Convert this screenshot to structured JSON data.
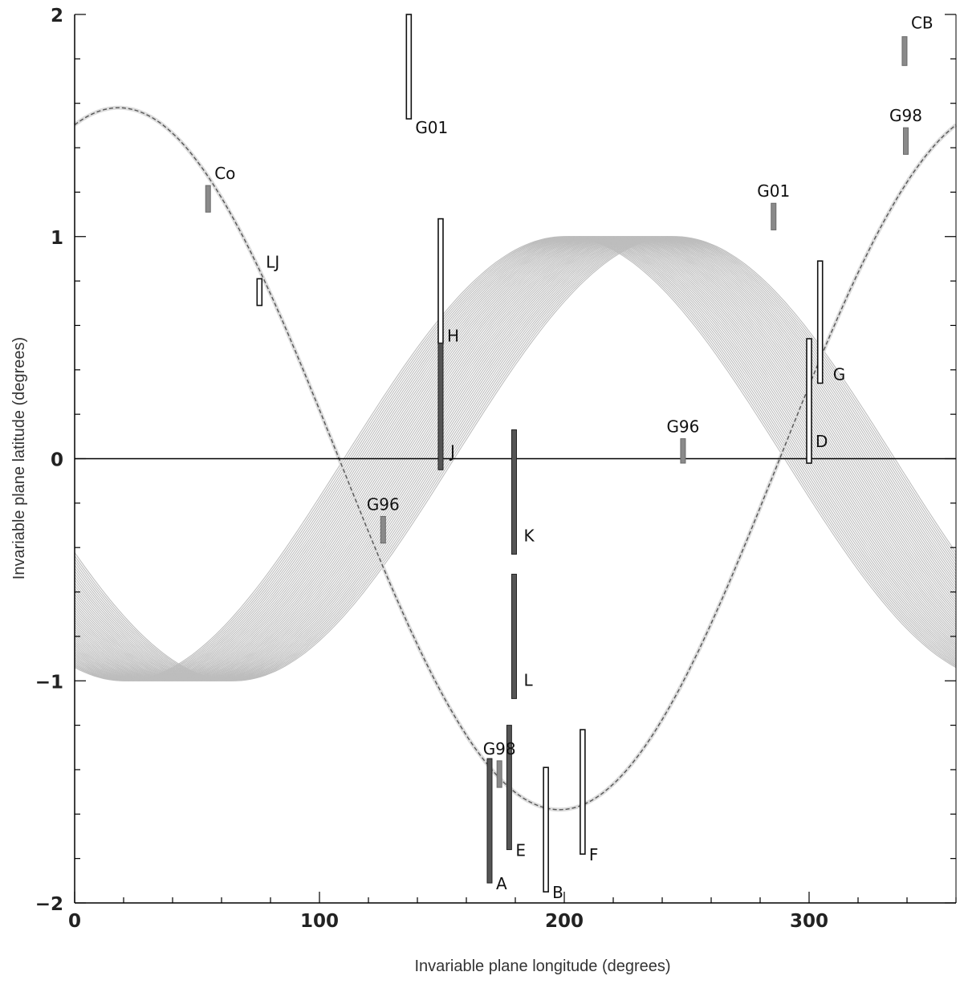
{
  "chart_data": {
    "type": "scatter",
    "title": "",
    "xlabel": "Invariable plane longitude (degrees)",
    "ylabel": "Invariable plane latitude (degrees)",
    "xlim": [
      0,
      360
    ],
    "ylim": [
      -2,
      2
    ],
    "x_ticks": [
      {
        "v": 0,
        "label": "0"
      },
      {
        "v": 100,
        "label": "100"
      },
      {
        "v": 200,
        "label": "200"
      },
      {
        "v": 300,
        "label": "300"
      }
    ],
    "y_ticks": [
      {
        "v": -2,
        "label": "−2"
      },
      {
        "v": -1,
        "label": "−1"
      },
      {
        "v": 0,
        "label": "0"
      },
      {
        "v": 1,
        "label": "1"
      },
      {
        "v": 2,
        "label": "2"
      }
    ],
    "grid": false,
    "curve": {
      "amplitude": 1.58,
      "peak_longitude": 18
    },
    "band": {
      "half_width": 1.0,
      "phase_range": [
        110,
        155
      ]
    },
    "zero_line": true,
    "color_band": "#bdbdbd",
    "color_curve": "#555555",
    "markers": [
      {
        "label": "G01",
        "x": 136.5,
        "y_low": 1.53,
        "y_high": 2.0,
        "style": "hollow"
      },
      {
        "label": "CB",
        "x": 339,
        "y_low": 1.77,
        "y_high": 1.9,
        "style": "gray"
      },
      {
        "label": "G98",
        "x": 339.5,
        "y_low": 1.37,
        "y_high": 1.49,
        "style": "gray"
      },
      {
        "label": "Co",
        "x": 54.5,
        "y_low": 1.11,
        "y_high": 1.23,
        "style": "gray"
      },
      {
        "label": "G01",
        "x": 285.5,
        "y_low": 1.03,
        "y_high": 1.15,
        "style": "gray"
      },
      {
        "label": "LJ",
        "x": 75.5,
        "y_low": 0.69,
        "y_high": 0.81,
        "style": "hollow"
      },
      {
        "label": "H",
        "x": 149.5,
        "y_low": 0.52,
        "y_high": 1.08,
        "style": "hollow"
      },
      {
        "label": "J",
        "x": 149.5,
        "y_low": -0.05,
        "y_high": 0.52,
        "style": "dark"
      },
      {
        "label": "G",
        "x": 304.5,
        "y_low": 0.34,
        "y_high": 0.89,
        "style": "hollow"
      },
      {
        "label": "D",
        "x": 300,
        "y_low": -0.02,
        "y_high": 0.54,
        "style": "hollow"
      },
      {
        "label": "G96",
        "x": 248.5,
        "y_low": -0.02,
        "y_high": 0.09,
        "style": "gray"
      },
      {
        "label": "K",
        "x": 179.5,
        "y_low": -0.43,
        "y_high": 0.13,
        "style": "dark"
      },
      {
        "label": "G96",
        "x": 126,
        "y_low": -0.38,
        "y_high": -0.26,
        "style": "gray"
      },
      {
        "label": "L",
        "x": 179.5,
        "y_low": -1.08,
        "y_high": -0.52,
        "style": "dark"
      },
      {
        "label": "G98",
        "x": 173.5,
        "y_low": -1.48,
        "y_high": -1.36,
        "style": "gray"
      },
      {
        "label": "A",
        "x": 169.5,
        "y_low": -1.91,
        "y_high": -1.35,
        "style": "dark"
      },
      {
        "label": "E",
        "x": 177.5,
        "y_low": -1.76,
        "y_high": -1.2,
        "style": "dark"
      },
      {
        "label": "B",
        "x": 192.5,
        "y_low": -1.95,
        "y_high": -1.39,
        "style": "hollow"
      },
      {
        "label": "F",
        "x": 207.5,
        "y_low": -1.78,
        "y_high": -1.22,
        "style": "hollow"
      }
    ]
  }
}
